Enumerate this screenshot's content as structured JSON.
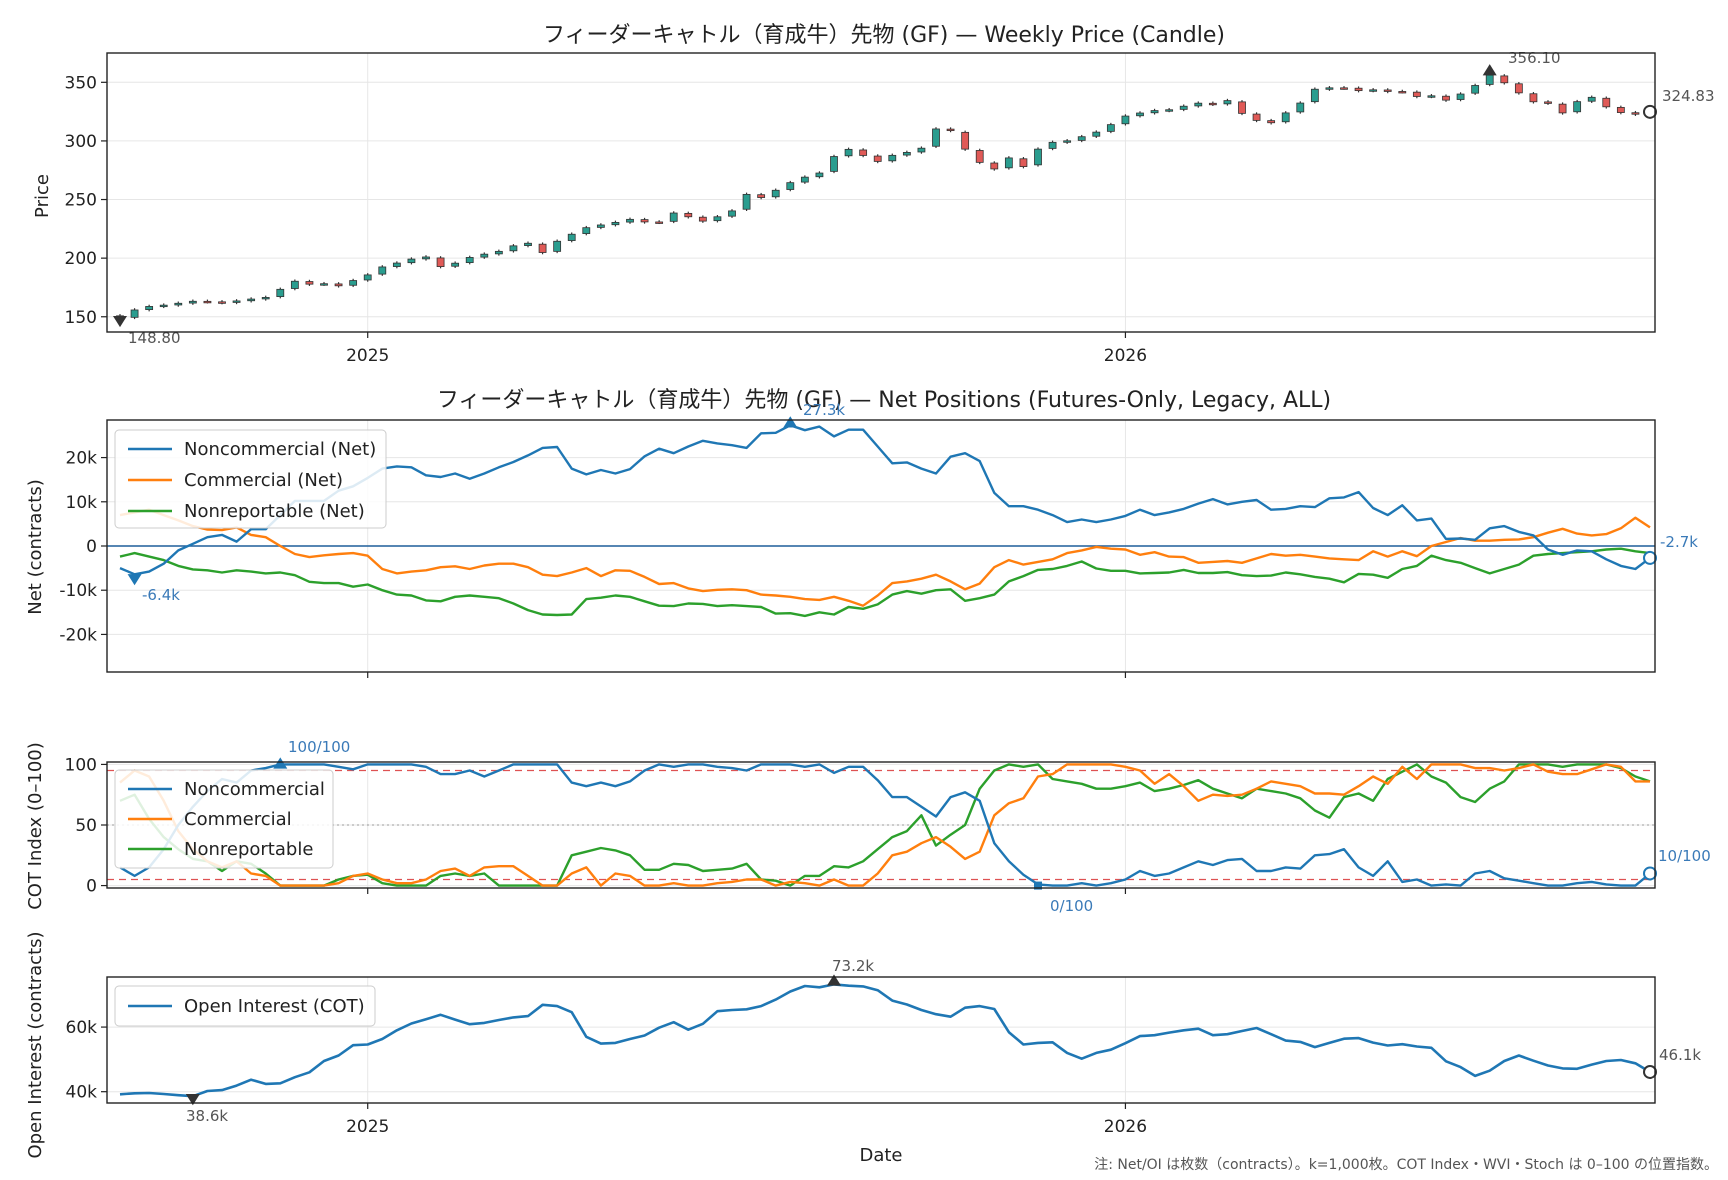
{
  "note": "注: Net/OI は枚数（contracts）。k=1,000枚。COT Index・WVI・Stoch は 0–100 の位置指数。",
  "x_axis_title": "Date",
  "chart_data": [
    {
      "id": "price",
      "type": "candlestick",
      "title": "フィーダーキャトル（育成牛）先物 (GF) — Weekly Price (Candle)",
      "ylabel": "Price",
      "ylim": [
        137,
        375
      ],
      "yticks": [
        150,
        200,
        250,
        300,
        350
      ],
      "xticks": [
        {
          "week": 17,
          "label": "2025"
        },
        {
          "week": 69,
          "label": "2026"
        }
      ],
      "up_color": "#2a9d8f",
      "down_color": "#e05a57",
      "close": [
        148.8,
        155.8,
        158.8,
        159.9,
        161.5,
        163.2,
        162.8,
        162.1,
        163.5,
        165.1,
        166.5,
        173.4,
        180.3,
        177.8,
        178.2,
        176.4,
        180.9,
        185.7,
        192.5,
        195.8,
        199.2,
        201.0,
        192.8,
        195.7,
        200.6,
        203.4,
        205.8,
        210.5,
        212.7,
        204.8,
        214.4,
        220.4,
        226.0,
        228.3,
        230.5,
        233.1,
        230.9,
        230.6,
        238.5,
        235.3,
        231.6,
        235.3,
        240.3,
        254.4,
        251.7,
        257.9,
        264.4,
        269.1,
        272.6,
        286.7,
        292.8,
        287.6,
        282.5,
        287.7,
        290.2,
        293.8,
        310.2,
        308.9,
        293.0,
        281.7,
        276.1,
        285.5,
        278.1,
        293.0,
        298.8,
        300.1,
        303.6,
        307.5,
        313.9,
        321.2,
        323.8,
        325.9,
        326.6,
        329.6,
        332.2,
        331.3,
        334.4,
        323.5,
        317.5,
        315.5,
        323.9,
        332.3,
        344.1,
        345.3,
        345.2,
        342.9,
        343.6,
        342.2,
        342.0,
        337.9,
        338.5,
        334.8,
        340.0,
        347.3,
        356.1,
        349.6,
        341.0,
        333.4,
        332.2,
        323.9,
        333.5,
        337.2,
        329.1,
        324.2,
        322.8,
        324.83
      ],
      "annotations": {
        "low": "148.80",
        "high": "356.10",
        "last": "324.83"
      }
    },
    {
      "id": "net",
      "type": "line",
      "title": "フィーダーキャトル（育成牛）先物 (GF) — Net Positions (Futures-Only, Legacy, ALL)",
      "ylabel": "Net (contracts)",
      "ylim": [
        -28500,
        28500
      ],
      "yticks": [
        {
          "v": 20000,
          "label": "20k"
        },
        {
          "v": 10000,
          "label": "10k"
        },
        {
          "v": 0,
          "label": "0"
        },
        {
          "v": -10000,
          "label": "-10k"
        },
        {
          "v": -20000,
          "label": "-20k"
        }
      ],
      "xticks": [
        {
          "week": 17,
          "label": "2025"
        },
        {
          "week": 69,
          "label": "2026"
        }
      ],
      "series": [
        {
          "name": "Noncommercial (Net)",
          "color": "#1f77b4",
          "values": [
            -5000,
            -6400,
            -5800,
            -4000,
            -1000,
            500,
            2000,
            2500,
            1000,
            3800,
            3800,
            7000,
            10200,
            10200,
            10200,
            12500,
            13500,
            15400,
            17500,
            18000,
            17800,
            16000,
            15600,
            16400,
            15200,
            16400,
            17800,
            19000,
            20500,
            22200,
            22400,
            17500,
            16200,
            17200,
            16400,
            17400,
            20300,
            22000,
            21000,
            22500,
            23800,
            23200,
            22800,
            22200,
            25500,
            25600,
            27300,
            26200,
            27000,
            24800,
            26300,
            26300,
            22500,
            18700,
            18900,
            17500,
            16400,
            20200,
            21000,
            19200,
            12000,
            9000,
            9000,
            8200,
            7000,
            5400,
            6000,
            5400,
            6000,
            6800,
            8200,
            7000,
            7600,
            8400,
            9600,
            10600,
            9400,
            10000,
            10400,
            8200,
            8400,
            9000,
            8800,
            10800,
            11000,
            12200,
            8600,
            7000,
            9200,
            5800,
            6200,
            1600,
            1700,
            1400,
            4000,
            4500,
            3200,
            2400,
            -800,
            -2000,
            -1000,
            -1200,
            -3000,
            -4500,
            -5200,
            -2700
          ],
          "annotations": {
            "low": "-6.4k",
            "high": "27.3k",
            "last": "-2.7k"
          }
        },
        {
          "name": "Commercial (Net)",
          "color": "#ff7f0e",
          "values": [
            7000,
            7600,
            8200,
            7000,
            5800,
            4500,
            3700,
            3600,
            4200,
            2500,
            2000,
            0,
            -1800,
            -2500,
            -2100,
            -1800,
            -1600,
            -2200,
            -5200,
            -6200,
            -5800,
            -5500,
            -4800,
            -4600,
            -5200,
            -4400,
            -4000,
            -4000,
            -4800,
            -6500,
            -6800,
            -6000,
            -5000,
            -6800,
            -5500,
            -5600,
            -7000,
            -8600,
            -8400,
            -9600,
            -10200,
            -9900,
            -9800,
            -10000,
            -11000,
            -11200,
            -11500,
            -12000,
            -12200,
            -11500,
            -12400,
            -13500,
            -11200,
            -8400,
            -8000,
            -7400,
            -6500,
            -8000,
            -9800,
            -8500,
            -4800,
            -3200,
            -4200,
            -3600,
            -3000,
            -1600,
            -1000,
            -200,
            -600,
            -800,
            -2000,
            -1400,
            -2400,
            -2500,
            -3800,
            -3600,
            -3400,
            -3800,
            -2800,
            -1800,
            -2200,
            -2000,
            -2400,
            -2800,
            -3000,
            -3200,
            -1200,
            -2400,
            -1200,
            -2300,
            0,
            900,
            1800,
            1200,
            1200,
            1400,
            1500,
            2000,
            3000,
            3900,
            2800,
            2400,
            2700,
            4000,
            6400,
            4200
          ]
        },
        {
          "name": "Nonreportable (Net)",
          "color": "#2ca02c",
          "values": [
            -2400,
            -1600,
            -2400,
            -3200,
            -4500,
            -5300,
            -5500,
            -6000,
            -5500,
            -5800,
            -6200,
            -6000,
            -6600,
            -8100,
            -8400,
            -8400,
            -9200,
            -8700,
            -10000,
            -11000,
            -11200,
            -12300,
            -12500,
            -11500,
            -11200,
            -11500,
            -11800,
            -13000,
            -14500,
            -15500,
            -15600,
            -15500,
            -12000,
            -11700,
            -11200,
            -11500,
            -12500,
            -13500,
            -13600,
            -13000,
            -13100,
            -13600,
            -13400,
            -13600,
            -13800,
            -15300,
            -15200,
            -15800,
            -15000,
            -15500,
            -13800,
            -14200,
            -13200,
            -11000,
            -10200,
            -10800,
            -10000,
            -9800,
            -12400,
            -11800,
            -11000,
            -8000,
            -6800,
            -5400,
            -5200,
            -4500,
            -3500,
            -5100,
            -5600,
            -5600,
            -6200,
            -6100,
            -6000,
            -5400,
            -6100,
            -6100,
            -5900,
            -6600,
            -6800,
            -6700,
            -6000,
            -6400,
            -7000,
            -7400,
            -8200,
            -6300,
            -6500,
            -7200,
            -5200,
            -4500,
            -2200,
            -3200,
            -3800,
            -5000,
            -6200,
            -5200,
            -4200,
            -2200,
            -1800,
            -1600,
            -1400,
            -1200,
            -800,
            -600,
            -1200,
            -1600
          ]
        }
      ]
    },
    {
      "id": "cot",
      "type": "line",
      "ylabel": "COT Index (0–100)",
      "ylim": [
        -2,
        102
      ],
      "yticks": [
        {
          "v": 0,
          "label": "0"
        },
        {
          "v": 50,
          "label": "50"
        },
        {
          "v": 100,
          "label": "100"
        }
      ],
      "xticks": [
        {
          "week": 17,
          "label": "2025"
        },
        {
          "week": 69,
          "label": "2026"
        }
      ],
      "bands": [
        95,
        5
      ],
      "midline": 50,
      "series": [
        {
          "name": "Noncommercial",
          "color": "#1f77b4",
          "values": [
            15,
            8,
            15,
            30,
            50,
            65,
            78,
            88,
            85,
            95,
            97,
            100,
            100,
            100,
            100,
            98,
            96,
            100,
            100,
            100,
            100,
            98,
            92,
            92,
            95,
            90,
            95,
            100,
            100,
            100,
            100,
            85,
            82,
            85,
            82,
            86,
            95,
            100,
            98,
            100,
            100,
            98,
            97,
            95,
            100,
            100,
            100,
            98,
            100,
            93,
            98,
            98,
            87,
            73,
            73,
            65,
            57,
            73,
            77,
            70,
            35,
            20,
            9,
            1,
            0,
            0,
            2,
            0,
            2,
            5,
            12,
            8,
            10,
            15,
            20,
            17,
            21,
            22,
            12,
            12,
            15,
            14,
            25,
            26,
            30,
            15,
            8,
            20,
            3,
            5,
            0,
            1,
            0,
            10,
            12,
            6,
            4,
            2,
            0,
            0,
            2,
            3,
            1,
            0,
            0,
            10
          ]
        },
        {
          "name": "Commercial",
          "color": "#ff7f0e",
          "values": [
            85,
            95,
            90,
            70,
            45,
            30,
            20,
            15,
            20,
            10,
            8,
            0,
            0,
            0,
            0,
            2,
            8,
            10,
            5,
            2,
            2,
            5,
            12,
            14,
            8,
            15,
            16,
            16,
            8,
            0,
            0,
            10,
            15,
            0,
            10,
            8,
            0,
            0,
            2,
            0,
            0,
            2,
            3,
            5,
            5,
            0,
            3,
            2,
            0,
            5,
            0,
            0,
            10,
            25,
            28,
            35,
            40,
            32,
            22,
            28,
            58,
            68,
            72,
            90,
            92,
            100,
            100,
            100,
            100,
            98,
            95,
            84,
            92,
            82,
            70,
            75,
            74,
            75,
            80,
            86,
            84,
            82,
            76,
            76,
            75,
            82,
            90,
            84,
            98,
            88,
            100,
            100,
            100,
            97,
            97,
            95,
            97,
            100,
            94,
            92,
            92,
            96,
            100,
            98,
            86,
            86
          ]
        },
        {
          "name": "Nonreportable",
          "color": "#2ca02c",
          "values": [
            70,
            75,
            55,
            40,
            30,
            22,
            20,
            12,
            20,
            18,
            10,
            0,
            0,
            0,
            0,
            5,
            8,
            9,
            2,
            0,
            0,
            0,
            8,
            10,
            8,
            10,
            0,
            0,
            0,
            0,
            0,
            25,
            28,
            31,
            29,
            25,
            13,
            13,
            18,
            17,
            12,
            13,
            14,
            18,
            5,
            4,
            0,
            8,
            8,
            16,
            15,
            20,
            30,
            40,
            45,
            58,
            33,
            42,
            50,
            80,
            95,
            100,
            98,
            100,
            88,
            86,
            84,
            80,
            80,
            82,
            85,
            78,
            80,
            83,
            87,
            80,
            76,
            72,
            80,
            78,
            76,
            72,
            62,
            56,
            73,
            76,
            70,
            88,
            94,
            100,
            90,
            85,
            73,
            69,
            80,
            86,
            100,
            100,
            100,
            98,
            100,
            100,
            100,
            97,
            90,
            86
          ]
        }
      ],
      "annotations": {
        "max": "100/100",
        "min": "0/100",
        "last": "10/100"
      }
    },
    {
      "id": "oi",
      "type": "line",
      "ylabel": "Open Interest (contracts)",
      "ylim": [
        36500,
        75500
      ],
      "yticks": [
        {
          "v": 40000,
          "label": "40k"
        },
        {
          "v": 60000,
          "label": "60k"
        }
      ],
      "xticks": [
        {
          "week": 17,
          "label": "2025"
        },
        {
          "week": 69,
          "label": "2026"
        }
      ],
      "xlabel": "Date",
      "series": [
        {
          "name": "Open Interest (COT)",
          "color": "#1f77b4",
          "values": [
            39200,
            39500,
            39600,
            39300,
            38900,
            38600,
            40200,
            40500,
            41900,
            43700,
            42400,
            42600,
            44500,
            46000,
            49500,
            51200,
            54400,
            54600,
            56300,
            59000,
            61100,
            62400,
            63800,
            62300,
            60900,
            61300,
            62200,
            63000,
            63400,
            66900,
            66500,
            64600,
            57000,
            54900,
            55100,
            56300,
            57400,
            59800,
            61500,
            59200,
            61000,
            64900,
            65300,
            65500,
            66500,
            68500,
            71000,
            72700,
            72300,
            73200,
            72800,
            72600,
            71400,
            68200,
            67000,
            65300,
            64000,
            63200,
            66000,
            66500,
            65600,
            58400,
            54600,
            55100,
            55300,
            52000,
            50200,
            52000,
            53000,
            55000,
            57200,
            57500,
            58300,
            59000,
            59500,
            57500,
            57800,
            58800,
            59700,
            57800,
            55800,
            55400,
            53800,
            55100,
            56400,
            56600,
            55200,
            54300,
            54700,
            54000,
            53600,
            49400,
            47600,
            44900,
            46500,
            49500,
            51200,
            49600,
            48100,
            47200,
            47100,
            48400,
            49500,
            49800,
            48800,
            46100
          ]
        }
      ],
      "annotations": {
        "low": "38.6k",
        "high": "73.2k",
        "last": "46.1k"
      }
    }
  ]
}
